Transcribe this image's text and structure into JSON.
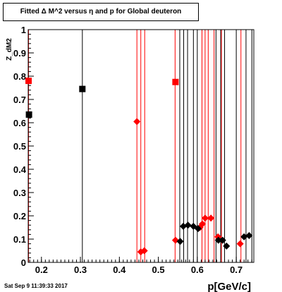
{
  "title": "Fitted Δ M^2 versus η and p for Global deuteron",
  "footer": "Sat Sep  9 11:39:33 2017",
  "colors": {
    "red": "#ff0000",
    "black": "#000000"
  },
  "chart_data": {
    "type": "scatter",
    "title": "Fitted Δ M^2 versus η and p for Global deuteron",
    "xlabel": "p[GeV/c]",
    "ylabel": "Z_dM2",
    "xlim": [
      0.166,
      0.745
    ],
    "ylim": [
      0,
      1
    ],
    "xticks": [
      "0.2",
      "0.3",
      "0.4",
      "0.5",
      "0.6",
      "0.7"
    ],
    "yticks": [
      "0",
      "0.1",
      "0.2",
      "0.3",
      "0.4",
      "0.5",
      "0.6",
      "0.7",
      "0.8",
      "0.9",
      "1"
    ],
    "grid": false,
    "vlines_black": [
      0.305,
      0.555,
      0.565,
      0.575,
      0.59,
      0.6,
      0.648,
      0.66,
      0.67,
      0.7,
      0.725,
      0.74
    ],
    "vlines_red": [
      0.167,
      0.445,
      0.455,
      0.465,
      0.543,
      0.612,
      0.62,
      0.628,
      0.643,
      0.662,
      0.712
    ],
    "series": [
      {
        "color": "red",
        "points": [
          {
            "x": 0.167,
            "y": 0.78,
            "marker": "square"
          },
          {
            "x": 0.544,
            "y": 0.775,
            "marker": "square"
          },
          {
            "x": 0.445,
            "y": 0.605,
            "marker": "diamond"
          },
          {
            "x": 0.455,
            "y": 0.045,
            "marker": "diamond"
          },
          {
            "x": 0.464,
            "y": 0.05,
            "marker": "diamond"
          },
          {
            "x": 0.544,
            "y": 0.095,
            "marker": "diamond"
          },
          {
            "x": 0.607,
            "y": 0.15,
            "marker": "diamond"
          },
          {
            "x": 0.613,
            "y": 0.165,
            "marker": "diamond"
          },
          {
            "x": 0.62,
            "y": 0.19,
            "marker": "diamond"
          },
          {
            "x": 0.635,
            "y": 0.19,
            "marker": "diamond"
          },
          {
            "x": 0.653,
            "y": 0.11,
            "marker": "diamond"
          },
          {
            "x": 0.71,
            "y": 0.08,
            "marker": "diamond"
          }
        ]
      },
      {
        "color": "black",
        "points": [
          {
            "x": 0.168,
            "y": 0.635,
            "marker": "square"
          },
          {
            "x": 0.305,
            "y": 0.745,
            "marker": "square"
          },
          {
            "x": 0.556,
            "y": 0.09,
            "marker": "diamond"
          },
          {
            "x": 0.564,
            "y": 0.155,
            "marker": "diamond"
          },
          {
            "x": 0.576,
            "y": 0.16,
            "marker": "diamond"
          },
          {
            "x": 0.59,
            "y": 0.155,
            "marker": "diamond"
          },
          {
            "x": 0.602,
            "y": 0.145,
            "marker": "diamond"
          },
          {
            "x": 0.654,
            "y": 0.095,
            "marker": "diamond"
          },
          {
            "x": 0.665,
            "y": 0.095,
            "marker": "diamond"
          },
          {
            "x": 0.675,
            "y": 0.07,
            "marker": "diamond"
          },
          {
            "x": 0.72,
            "y": 0.11,
            "marker": "diamond"
          },
          {
            "x": 0.733,
            "y": 0.115,
            "marker": "diamond"
          }
        ]
      }
    ]
  }
}
